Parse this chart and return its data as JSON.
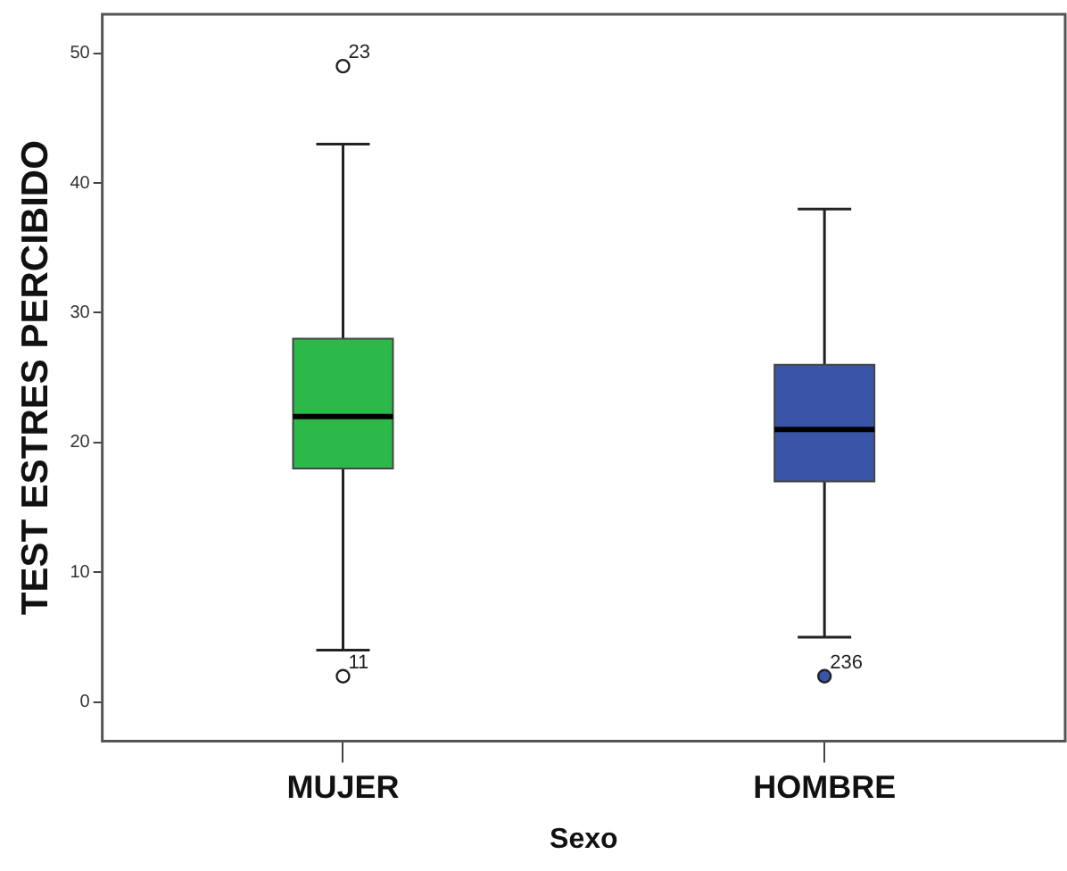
{
  "chart_data": {
    "type": "box",
    "xlabel": "Sexo",
    "ylabel": "TEST ESTRES PERCIBIDO",
    "categories": [
      "MUJER",
      "HOMBRE"
    ],
    "colors": [
      "#2db84a",
      "#3a55a8"
    ],
    "boxes": [
      {
        "low": 4,
        "q1": 18,
        "median": 22,
        "q3": 28,
        "high": 43,
        "outliers": [
          49,
          2
        ]
      },
      {
        "low": 5,
        "q1": 17,
        "median": 21,
        "q3": 26,
        "high": 38,
        "outliers": [
          2
        ]
      }
    ],
    "ylim": [
      -3,
      53
    ],
    "yticks": [
      0,
      10,
      20,
      30,
      40,
      50
    ],
    "grid": false,
    "legend": false,
    "annotations": [
      "23",
      "11",
      "236"
    ]
  }
}
